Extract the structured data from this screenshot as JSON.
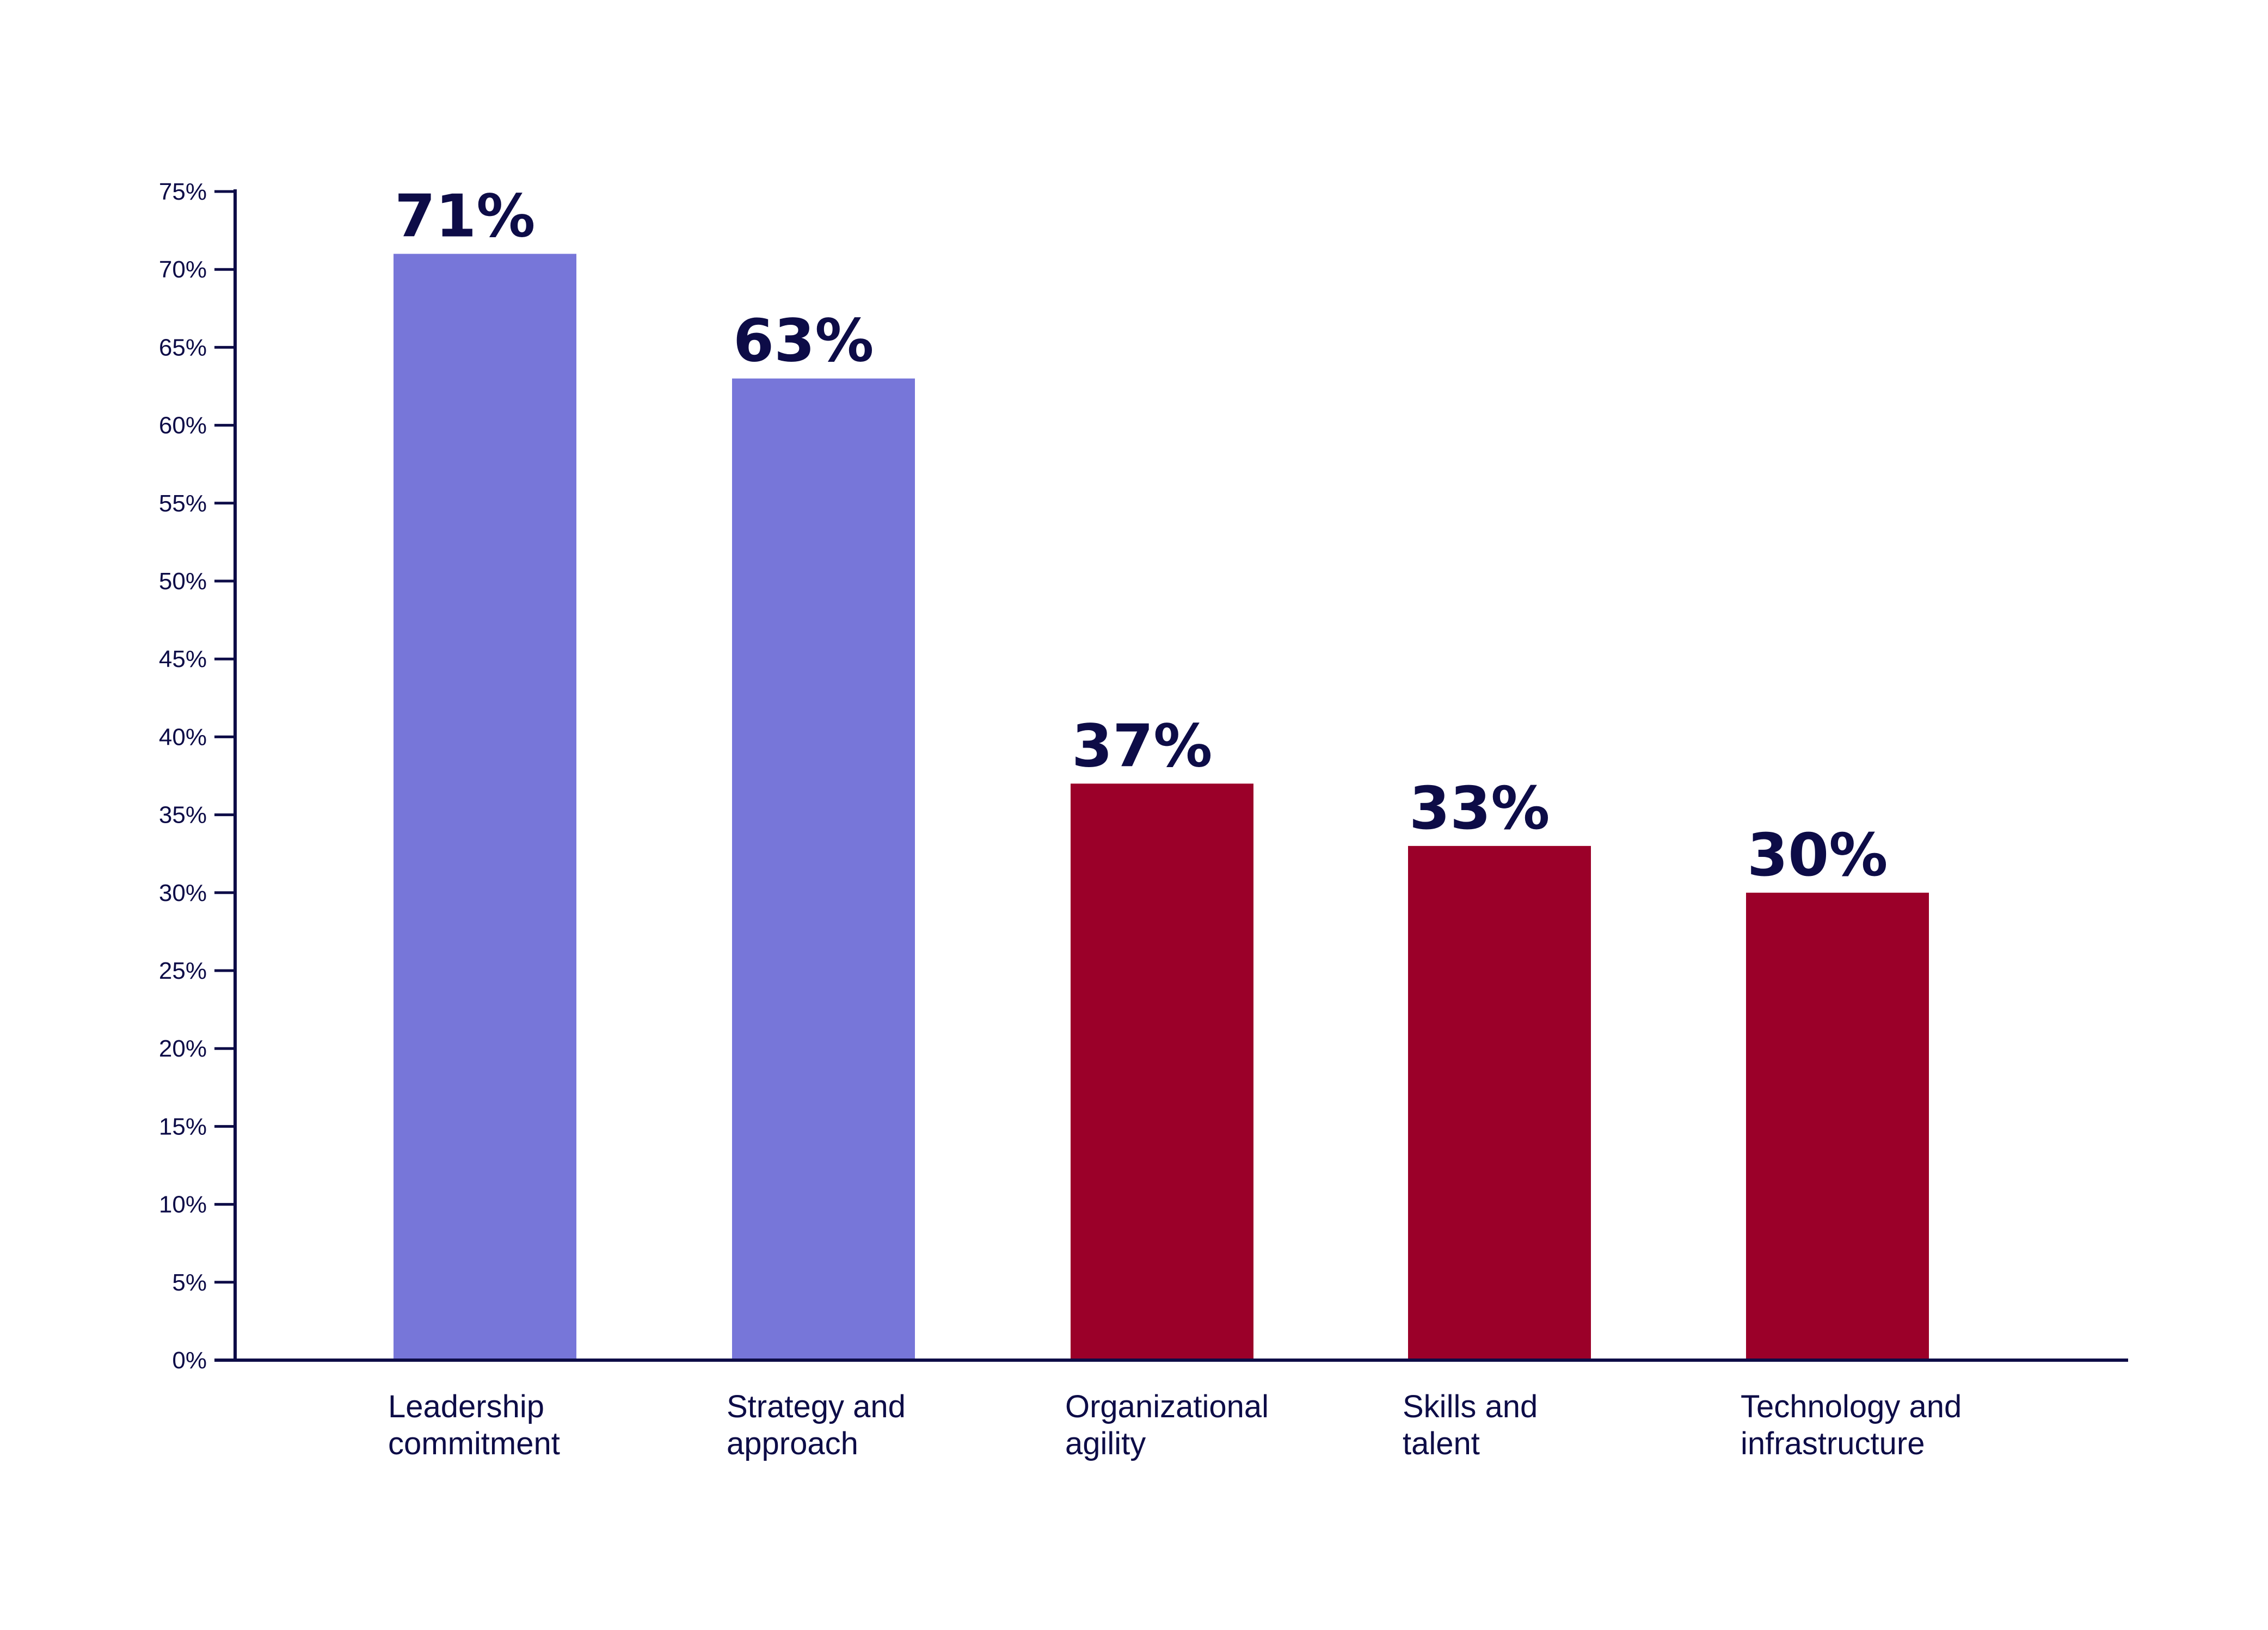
{
  "chart_data": {
    "type": "bar",
    "title": "",
    "xlabel": "",
    "ylabel": "",
    "categories": [
      [
        "Leadership",
        "commitment"
      ],
      [
        "Strategy and",
        "approach"
      ],
      [
        "Organizational",
        "agility"
      ],
      [
        "Skills and",
        "talent"
      ],
      [
        "Technology and",
        "infrastructure"
      ]
    ],
    "values": [
      71,
      63,
      37,
      33,
      30
    ],
    "value_labels": [
      "71%",
      "63%",
      "37%",
      "33%",
      "30%"
    ],
    "ylim": [
      0,
      75
    ],
    "yticks": [
      0,
      5,
      10,
      15,
      20,
      25,
      30,
      35,
      40,
      45,
      50,
      55,
      60,
      65,
      70,
      75
    ],
    "ytick_labels": [
      "0%",
      "5%",
      "10%",
      "15%",
      "20%",
      "25%",
      "30%",
      "35%",
      "40%",
      "45%",
      "50%",
      "55%",
      "60%",
      "65%",
      "70%",
      "75%"
    ],
    "grid": false,
    "bar_colors": [
      "#7776d9",
      "#7776d9",
      "#9b0029",
      "#9b0029",
      "#9b0029"
    ],
    "axis_color": "#0d0c47",
    "text_color": "#0d0c47"
  }
}
